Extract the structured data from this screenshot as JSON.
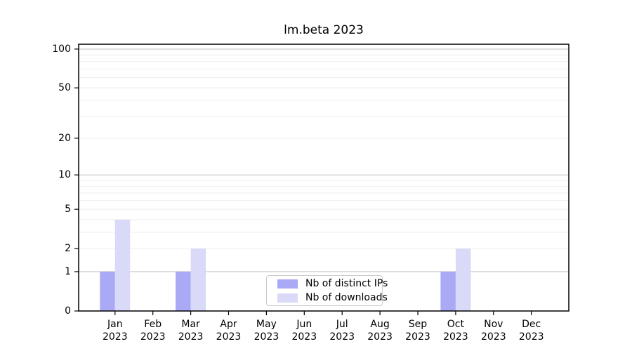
{
  "chart_data": {
    "type": "bar",
    "title": "lm.beta 2023",
    "x_tick_year": "2023",
    "categories": [
      "Jan",
      "Feb",
      "Mar",
      "Apr",
      "May",
      "Jun",
      "Jul",
      "Aug",
      "Sep",
      "Oct",
      "Nov",
      "Dec"
    ],
    "series": [
      {
        "name": "Nb of distinct IPs",
        "color": "#a9a9f6",
        "values": [
          1,
          0,
          1,
          0,
          0,
          0,
          0,
          0,
          0,
          1,
          0,
          0
        ]
      },
      {
        "name": "Nb of downloads",
        "color": "#d9d9f8",
        "values": [
          4,
          0,
          2,
          0,
          0,
          0,
          0,
          0,
          0,
          2,
          0,
          0
        ]
      }
    ],
    "y_axis": {
      "scale": "log1p",
      "tick_values": [
        0,
        1,
        2,
        5,
        10,
        20,
        50,
        100
      ],
      "major_gridline_values": [
        1,
        10,
        100
      ],
      "minor_gridline_values": [
        2,
        3,
        4,
        5,
        6,
        7,
        8,
        9,
        20,
        30,
        40,
        50,
        60,
        70,
        80,
        90
      ],
      "ylim": [
        0,
        109
      ]
    },
    "grid": true,
    "legend_position": "bottom-center"
  },
  "colors": {
    "background": "#ffffff",
    "axis": "#000000",
    "major_grid": "#c6c6c6",
    "minor_grid": "#eeeeee",
    "bar_distinct_ips": "#a9a9f6",
    "bar_downloads": "#d9d9f8"
  }
}
